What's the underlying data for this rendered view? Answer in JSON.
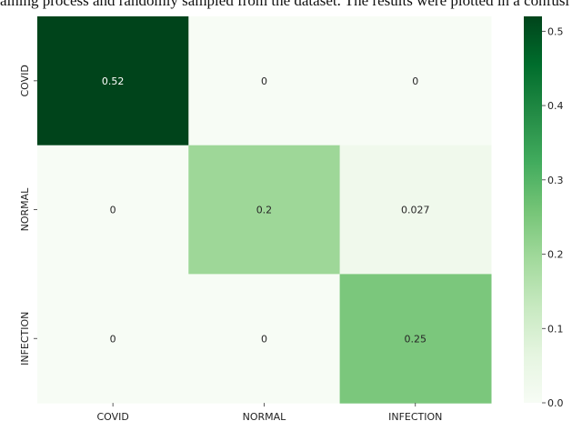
{
  "caption_fragment": "aining process and randomly sampled from the dataset. The results were plotted in a confusi",
  "chart_data": {
    "type": "heatmap",
    "title": "",
    "xlabel": "",
    "ylabel": "",
    "x_categories": [
      "COVID",
      "NORMAL",
      "INFECTION"
    ],
    "y_categories": [
      "COVID",
      "NORMAL",
      "INFECTION"
    ],
    "values": [
      [
        0.52,
        0,
        0
      ],
      [
        0,
        0.2,
        0.027
      ],
      [
        0,
        0,
        0.25
      ]
    ],
    "cell_labels": [
      [
        "0.52",
        "0",
        "0"
      ],
      [
        "0",
        "0.2",
        "0.027"
      ],
      [
        "0",
        "0",
        "0.25"
      ]
    ],
    "colormap": "Greens",
    "color_range": [
      0,
      0.52
    ],
    "colorbar_ticks": [
      "0.0",
      "0.1",
      "0.2",
      "0.3",
      "0.4",
      "0.5"
    ],
    "colors": {
      "low": "#f7fcf5",
      "high": "#00441b",
      "dark_text": "#262626",
      "light_text": "#ffffff"
    }
  }
}
